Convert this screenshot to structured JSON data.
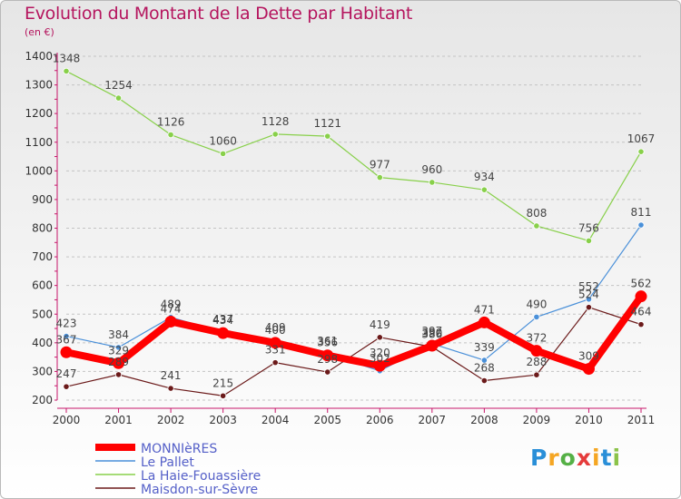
{
  "chart_data": {
    "type": "line",
    "title": "Evolution du Montant de la Dette par Habitant",
    "subtitle": "(en €)",
    "x": [
      "2000",
      "2001",
      "2002",
      "2003",
      "2004",
      "2005",
      "2006",
      "2007",
      "2008",
      "2009",
      "2010",
      "2011"
    ],
    "ylim": [
      200,
      1400
    ],
    "yticks": [
      "200",
      "300",
      "400",
      "500",
      "600",
      "700",
      "800",
      "900",
      "1000",
      "1100",
      "1200",
      "1300",
      "1400"
    ],
    "grid": true,
    "legend_position": "bottom-left",
    "series": [
      {
        "name": "MONNIèRES",
        "color": "#ff0000",
        "values": [
          367,
          329,
          474,
          434,
          400,
          356,
          320,
          390,
          471,
          372,
          309,
          562
        ],
        "labels": [
          "367",
          "329",
          "474",
          "434",
          "400",
          "356",
          "320",
          "390",
          "471",
          "372",
          "309",
          "562"
        ]
      },
      {
        "name": "Le Pallet",
        "color": "#4a90d9",
        "values": [
          423,
          384,
          489,
          437,
          409,
          361,
          302,
          397,
          339,
          490,
          552,
          811
        ],
        "labels": [
          "423",
          "384",
          "489",
          "437",
          "409",
          "361",
          "302",
          "397",
          "339",
          "490",
          "552",
          "811"
        ]
      },
      {
        "name": "La Haie-Fouassière",
        "color": "#88d04a",
        "values": [
          1348,
          1254,
          1126,
          1060,
          1128,
          1121,
          977,
          960,
          934,
          808,
          756,
          1067
        ],
        "labels": [
          "1348",
          "1254",
          "1126",
          "1060",
          "1128",
          "1121",
          "977",
          "960",
          "934",
          "808",
          "756",
          "1067"
        ]
      },
      {
        "name": "Maisdon-sur-Sèvre",
        "color": "#6b1a1a",
        "values": [
          247,
          289,
          241,
          215,
          331,
          298,
          419,
          386,
          268,
          288,
          524,
          464
        ],
        "labels": [
          "247",
          "289",
          "241",
          "215",
          "331",
          "298",
          "419",
          "386",
          "268",
          "288",
          "524",
          "464"
        ]
      }
    ]
  },
  "brand": {
    "letters": [
      "P",
      "r",
      "o",
      "x",
      "i",
      "t",
      "i"
    ],
    "colors": [
      "#2a8fd8",
      "#f5a623",
      "#55b046",
      "#e53b3b",
      "#f5a623",
      "#2a8fd8",
      "#8bc34a"
    ]
  }
}
